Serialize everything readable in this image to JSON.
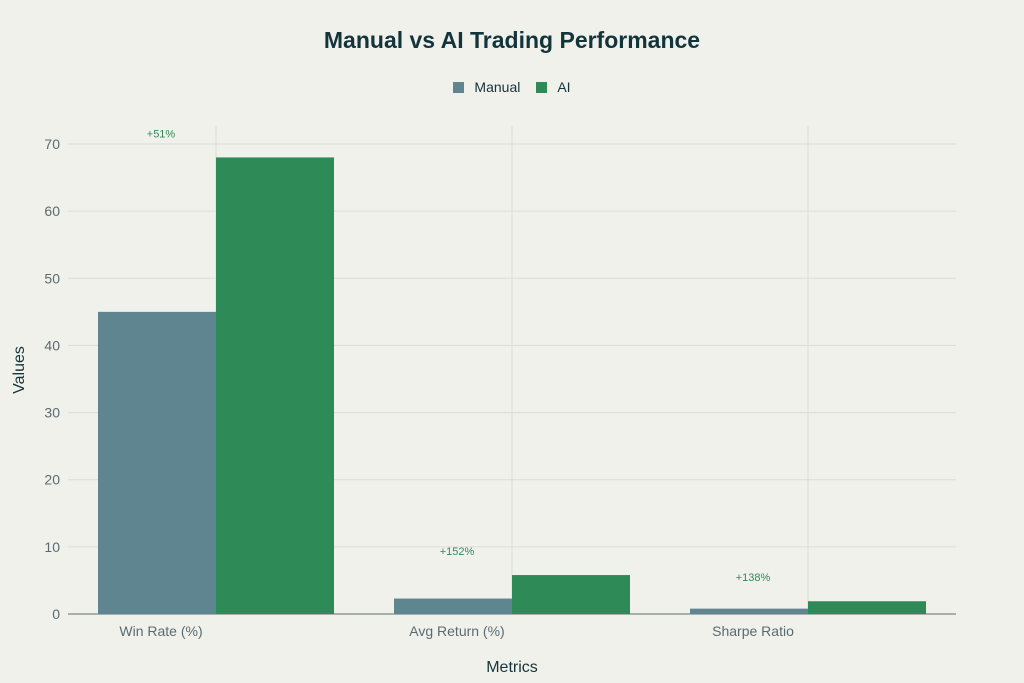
{
  "chart_data": {
    "type": "bar",
    "title": "Manual vs AI Trading Performance",
    "xlabel": "Metrics",
    "ylabel": "Values",
    "categories": [
      "Win Rate (%)",
      "Avg Return (%)",
      "Sharpe Ratio"
    ],
    "series": [
      {
        "name": "Manual",
        "values": [
          45,
          2.3,
          0.8
        ],
        "color": "#5e8590"
      },
      {
        "name": "AI",
        "values": [
          68,
          5.8,
          1.9
        ],
        "color": "#2e8b57"
      }
    ],
    "annotations": [
      "+51%",
      "+152%",
      "+138%"
    ],
    "annotation_color": "#2e8b57",
    "ylim": [
      0,
      70
    ],
    "yticks": [
      0,
      10,
      20,
      30,
      40,
      50,
      60,
      70
    ],
    "grid": true,
    "legend_position": "top-center"
  }
}
